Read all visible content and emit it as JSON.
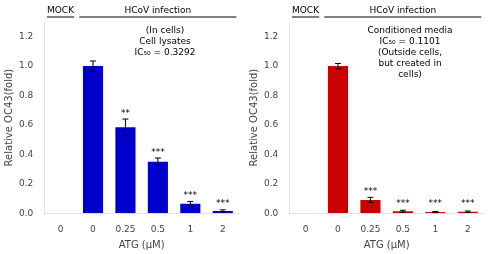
{
  "chart_data": [
    {
      "type": "bar",
      "categories": [
        "0",
        "0",
        "0.25",
        "0.5",
        "1",
        "2"
      ],
      "values": [
        0.0,
        1.0,
        0.585,
        0.35,
        0.065,
        0.015
      ],
      "errors": [
        0.0,
        0.035,
        0.055,
        0.025,
        0.015,
        0.008
      ],
      "color": "#0000CC",
      "significance": [
        null,
        null,
        "**",
        "***",
        "***",
        "***"
      ],
      "groups": [
        {
          "label": "MOCK",
          "span": 1
        },
        {
          "label": "HCoV infection",
          "span": 5
        }
      ],
      "annotations": [
        "(In cells)",
        "Cell lysates",
        "IC₅₀ = 0.3292"
      ],
      "ylabel": "Relative OC43(fold)",
      "xlabel": "ATG (μM)",
      "ylim": [
        0,
        1.3
      ],
      "yticks": [
        {
          "value": 0,
          "label": "0.0"
        },
        0.2,
        0.4,
        0.6,
        0.8,
        {
          "value": 1,
          "label": "1.0"
        },
        1.2
      ],
      "grid": false
    },
    {
      "type": "bar",
      "categories": [
        "0",
        "0",
        "0.25",
        "0.5",
        "1",
        "2"
      ],
      "values": [
        0.0,
        1.0,
        0.09,
        0.013,
        0.008,
        0.01
      ],
      "errors": [
        0.0,
        0.018,
        0.018,
        0.007,
        0.004,
        0.005
      ],
      "color": "#CC0000",
      "significance": [
        null,
        null,
        "***",
        "***",
        "***",
        "***"
      ],
      "groups": [
        {
          "label": "MOCK",
          "span": 1
        },
        {
          "label": "HCoV infection",
          "span": 5
        }
      ],
      "annotations": [
        "Conditioned media",
        "IC₅₀ = 0.1101",
        "(Outside cells,",
        "but created in",
        "cells)"
      ],
      "ylabel": "Relative OC43(fold)",
      "xlabel": "ATG (μM)",
      "ylim": [
        0,
        1.3
      ],
      "yticks": [
        {
          "value": 0,
          "label": "0.0"
        },
        0.2,
        0.4,
        0.6,
        0.8,
        {
          "value": 1,
          "label": "1.0"
        },
        1.2
      ],
      "grid": false
    }
  ]
}
